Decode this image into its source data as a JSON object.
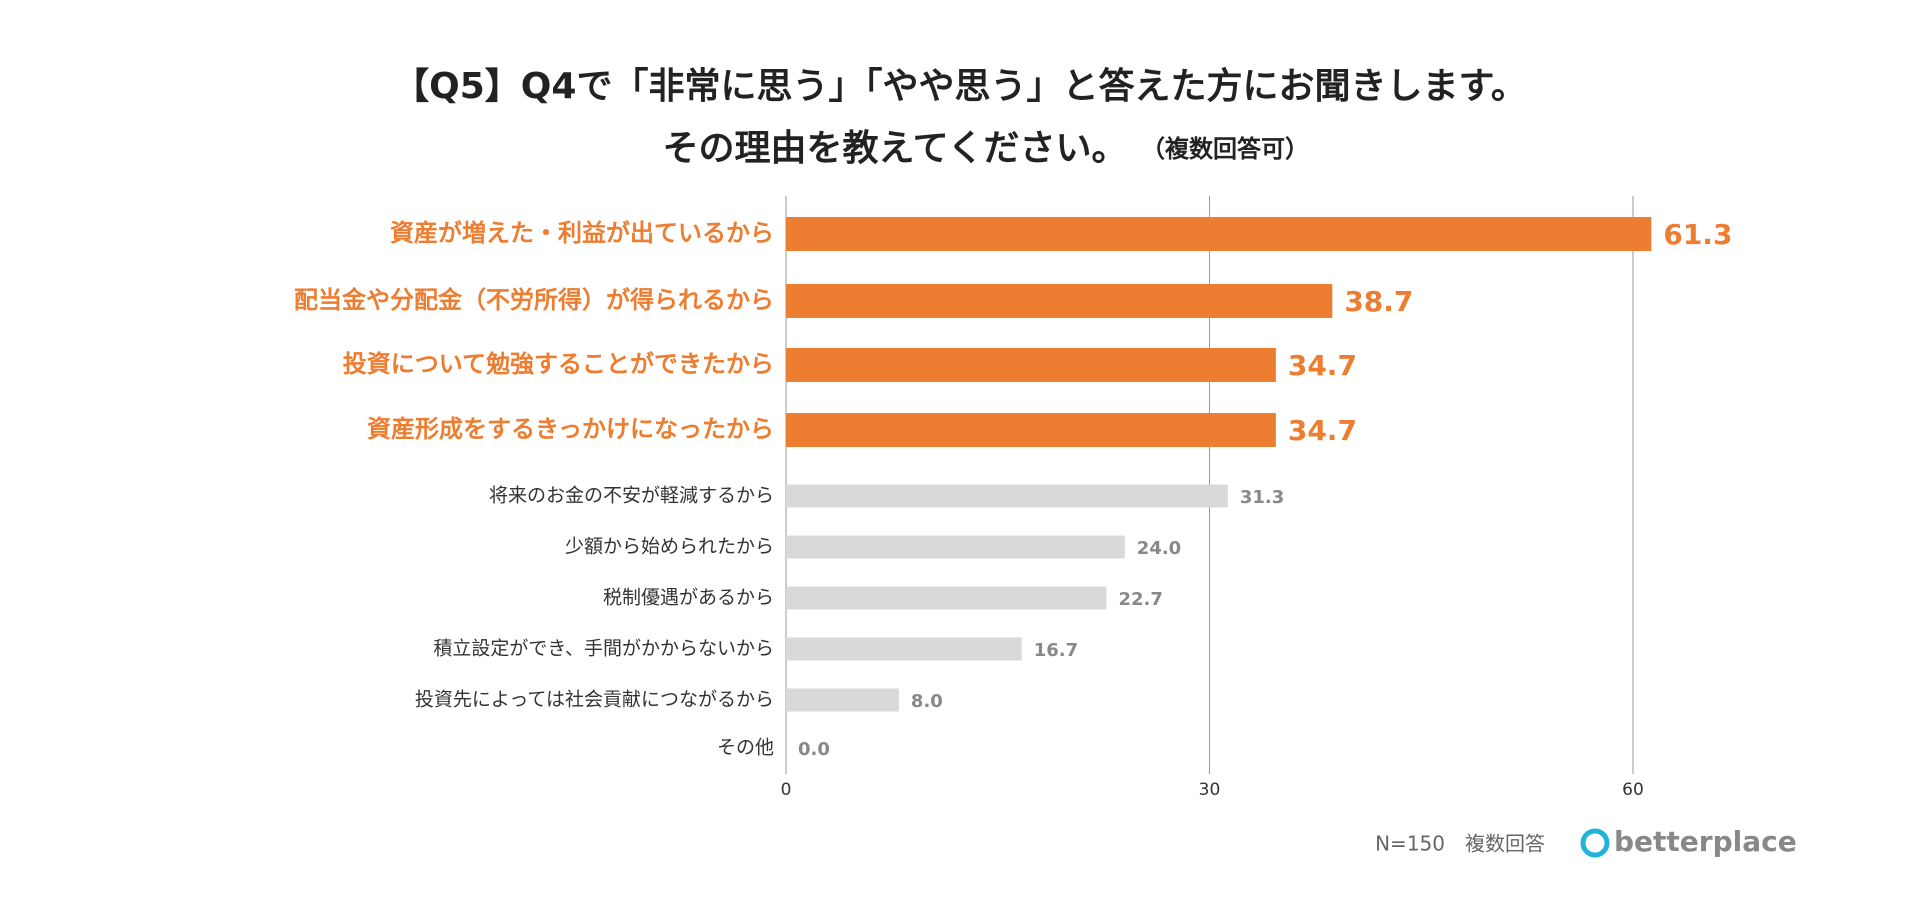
{
  "chart_data": {
    "type": "hbar",
    "title": "【Q5】Q4で「非常に思う」「やや思う」と答えた方にお聞きします。",
    "subtitle": "その理由を教えてください。",
    "subtitle_note": "（複数回答可）",
    "categories": [
      "資産が増えた・利益が出ているから",
      "配当金や分配金（不労所得）が得られるから",
      "投資について勉強することができたから",
      "資産形成をするきっかけになったから",
      "将来のお金の不安が軽減するから",
      "少額から始められたから",
      "税制優遇があるから",
      "積立設定ができ、手間がかからないから",
      "投資先によっては社会貢献につながるから",
      "その他"
    ],
    "values": [
      61.3,
      38.7,
      34.7,
      34.7,
      31.3,
      24.0,
      22.7,
      16.7,
      8.0,
      0.0
    ],
    "value_labels": [
      "61.3",
      "38.7",
      "34.7",
      "34.7",
      "31.3",
      "24.0",
      "22.7",
      "16.7",
      "8.0",
      "0.0"
    ],
    "colors": [
      "#ed7d31",
      "#ed7d31",
      "#ed7d31",
      "#ed7d31",
      "#d9d9d9",
      "#d9d9d9",
      "#d9d9d9",
      "#d9d9d9",
      "#d9d9d9",
      "#d9d9d9"
    ],
    "highlight_color": "#ed7d31",
    "xlim": [
      0,
      60
    ],
    "xticks": [
      0,
      30,
      60
    ],
    "grid": true,
    "footnote": "N=150　複数回答",
    "logo": "betterplace"
  }
}
